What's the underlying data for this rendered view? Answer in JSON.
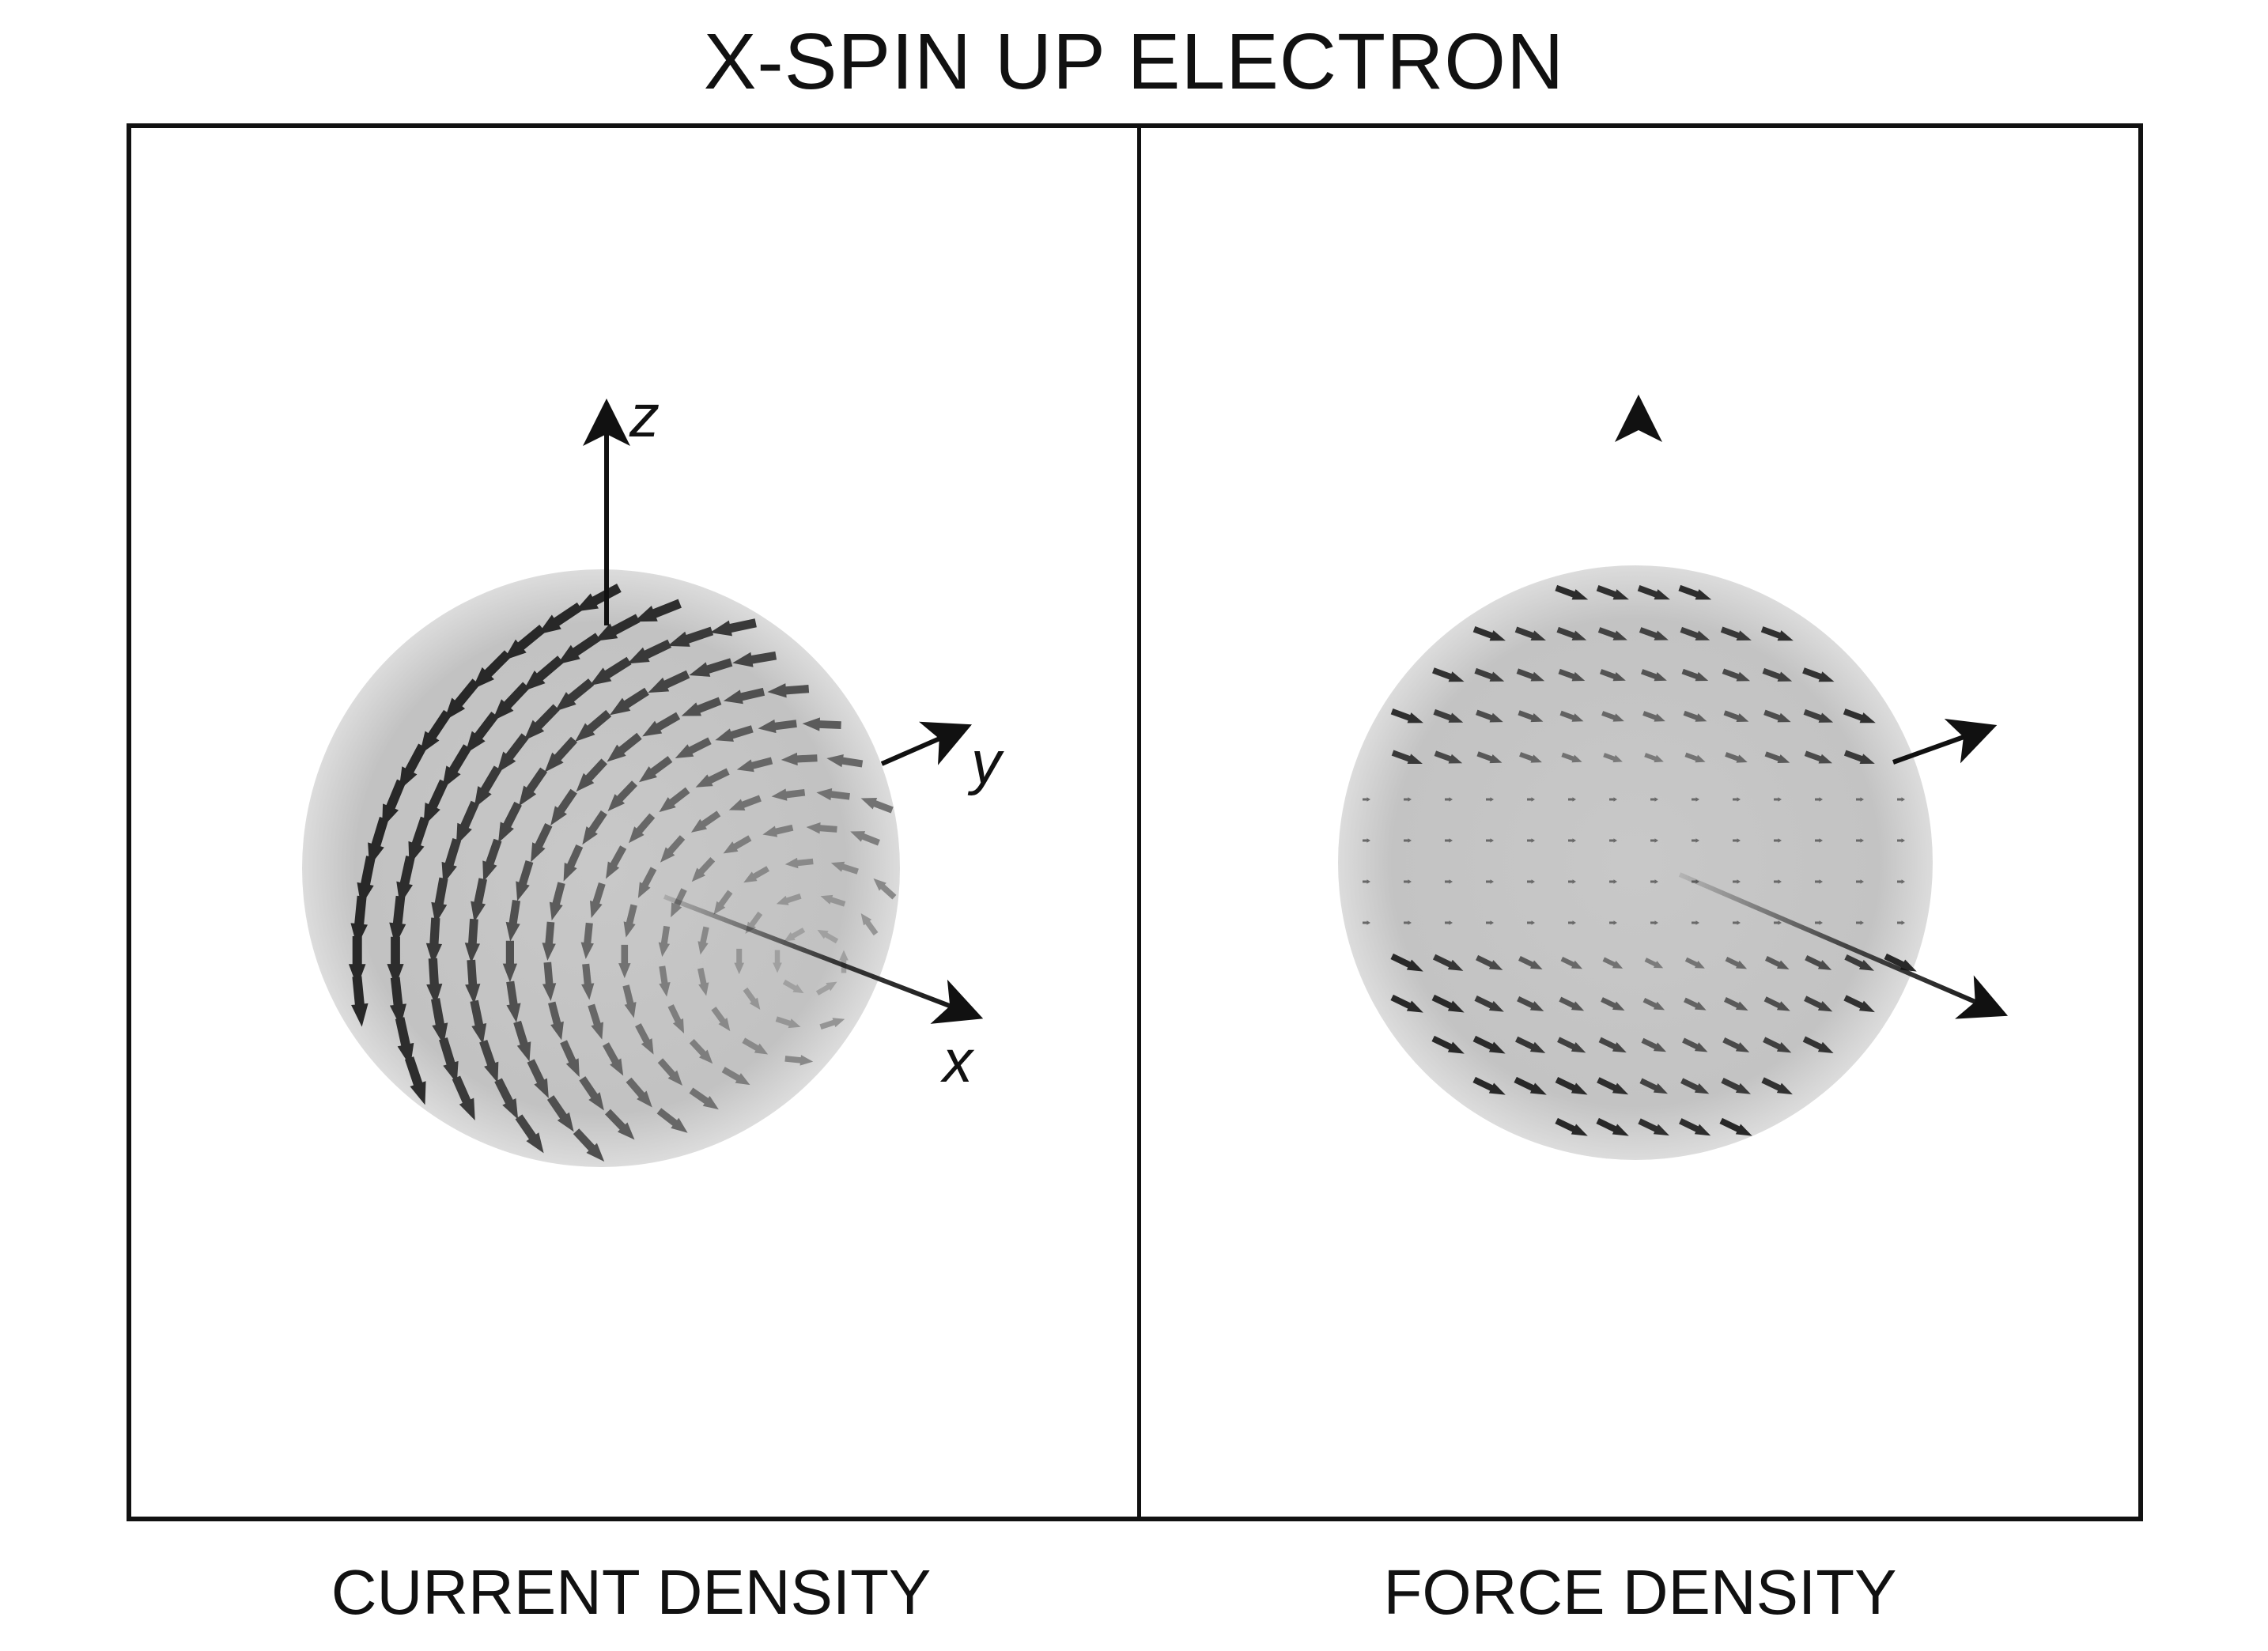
{
  "figure": {
    "title": "X-SPIN UP ELECTRON"
  },
  "panels": [
    {
      "id": "current",
      "caption": "CURRENT DENSITY",
      "axes": {
        "z": "z",
        "y": "y",
        "x": "x"
      },
      "field": "circulation"
    },
    {
      "id": "force",
      "caption": "FORCE DENSITY",
      "axes": {
        "z": "",
        "y": "",
        "x": ""
      },
      "field": "radial-gradient"
    }
  ],
  "colors": {
    "sphere_fill": "#c4c4c4",
    "sphere_edge": "#d9d9d9",
    "axis": "#111111",
    "frame": "#111111",
    "arrow_dark": "#2a2a2a",
    "arrow_light": "#9a9a9a"
  }
}
